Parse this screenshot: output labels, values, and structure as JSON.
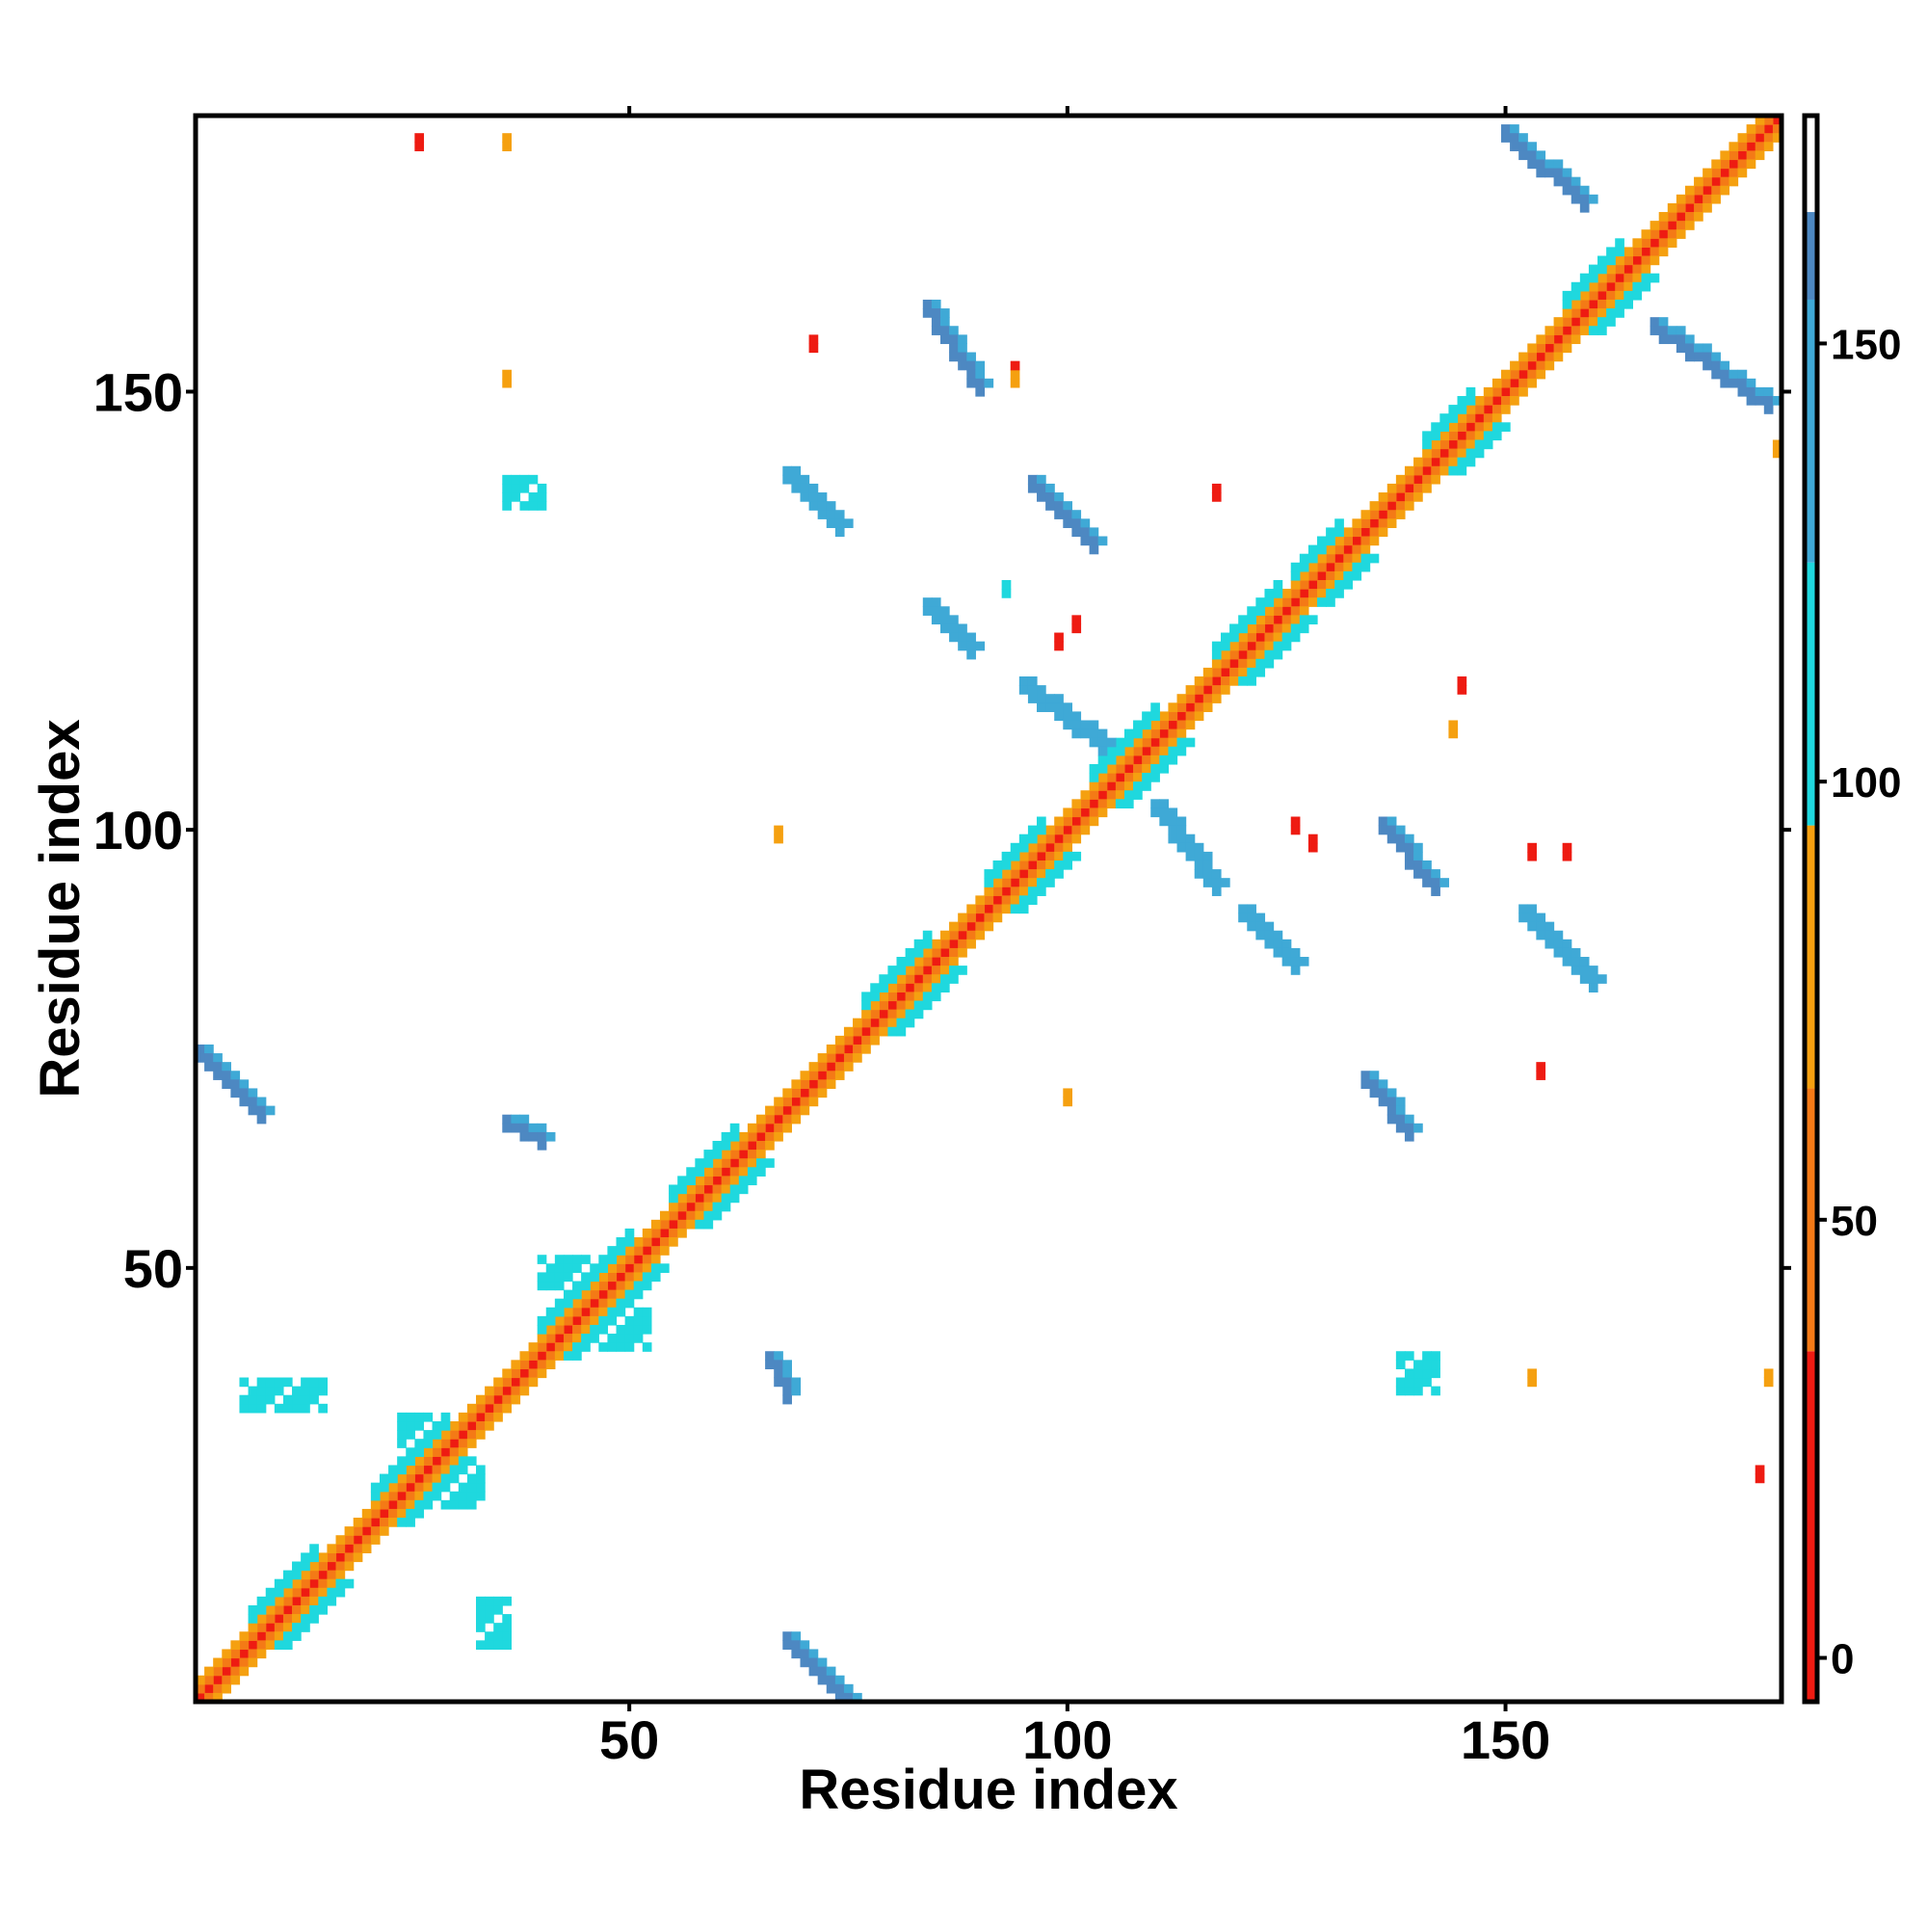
{
  "chart_data": {
    "type": "heatmap",
    "title": "",
    "xlabel": "Residue index",
    "ylabel": "Residue index",
    "x_range": [
      1,
      181
    ],
    "y_range": [
      1,
      181
    ],
    "x_ticks": [
      50,
      100,
      150
    ],
    "y_ticks": [
      50,
      100,
      150
    ],
    "grid": false,
    "colorbar": {
      "range": [
        -5,
        176
      ],
      "ticks": [
        0,
        50,
        100,
        150
      ],
      "bins": [
        {
          "from": -5,
          "to": 35,
          "color": "#ee1b12"
        },
        {
          "from": 35,
          "to": 65,
          "color": "#f47a16"
        },
        {
          "from": 65,
          "to": 95,
          "color": "#f5a010"
        },
        {
          "from": 95,
          "to": 125,
          "color": "#1fd8de"
        },
        {
          "from": 125,
          "to": 155,
          "color": "#3fa9d6"
        },
        {
          "from": 155,
          "to": 165,
          "color": "#4d88c2"
        },
        {
          "from": 165,
          "to": 176,
          "color": "#ffffff"
        }
      ]
    },
    "colors": {
      "red": "#ee1b12",
      "orange_red": "#f47a16",
      "orange": "#f5a010",
      "cyan": "#1fd8de",
      "light_blue": "#3fa9d6",
      "steel_blue": "#4d88c2",
      "diagonal_gap": "#ffffff"
    },
    "diagonal_bands": [
      {
        "offset": 0,
        "color": "red_orange_stripes"
      },
      {
        "offset": 1,
        "color": "orange_red"
      },
      {
        "offset": 2,
        "color": "orange"
      }
    ],
    "helix_regions": [
      [
        7,
        14
      ],
      [
        21,
        28
      ],
      [
        40,
        50
      ],
      [
        55,
        62
      ],
      [
        77,
        84
      ],
      [
        91,
        97
      ],
      [
        103,
        110
      ],
      [
        117,
        124
      ],
      [
        126,
        131
      ],
      [
        141,
        146
      ],
      [
        157,
        163
      ]
    ],
    "off_diagonal_blocks": [
      {
        "x": [
          84,
          90
        ],
        "y": [
          151,
          160
        ],
        "orient": "down",
        "color": "steel_blue"
      },
      {
        "x": [
          150,
          159
        ],
        "y": [
          172,
          180
        ],
        "orient": "down",
        "color": "steel_blue"
      },
      {
        "x": [
          167,
          180
        ],
        "y": [
          149,
          158
        ],
        "orient": "down",
        "color": "steel_blue"
      },
      {
        "x": [
          68,
          74
        ],
        "y": [
          135,
          141
        ],
        "orient": "down",
        "color": "light_blue"
      },
      {
        "x": [
          96,
          103
        ],
        "y": [
          133,
          140
        ],
        "orient": "down",
        "color": "steel_blue"
      },
      {
        "x": [
          84,
          89
        ],
        "y": [
          121,
          126
        ],
        "orient": "down",
        "color": "light_blue"
      },
      {
        "x": [
          95,
          104
        ],
        "y": [
          110,
          117
        ],
        "orient": "down",
        "color": "light_blue"
      },
      {
        "x": [
          110,
          117
        ],
        "y": [
          94,
          103
        ],
        "orient": "down",
        "color": "light_blue"
      },
      {
        "x": [
          136,
          142
        ],
        "y": [
          94,
          101
        ],
        "orient": "down",
        "color": "steel_blue"
      },
      {
        "x": [
          152,
          160
        ],
        "y": [
          83,
          91
        ],
        "orient": "down",
        "color": "light_blue"
      },
      {
        "x": [
          120,
          126
        ],
        "y": [
          85,
          91
        ],
        "orient": "down",
        "color": "light_blue"
      },
      {
        "x": [
          134,
          139
        ],
        "y": [
          66,
          72
        ],
        "orient": "down",
        "color": "steel_blue"
      },
      {
        "x": [
          1,
          8
        ],
        "y": [
          68,
          75
        ],
        "orient": "down",
        "color": "steel_blue"
      },
      {
        "x": [
          68,
          75
        ],
        "y": [
          1,
          8
        ],
        "orient": "down",
        "color": "steel_blue"
      },
      {
        "x": [
          36,
          40
        ],
        "y": [
          65,
          67
        ],
        "orient": "down",
        "color": "steel_blue"
      },
      {
        "x": [
          66,
          68
        ],
        "y": [
          36,
          40
        ],
        "orient": "down",
        "color": "steel_blue"
      },
      {
        "x": [
          36,
          40
        ],
        "y": [
          137,
          140
        ],
        "orient": "cluster",
        "color": "cyan"
      },
      {
        "x": [
          138,
          142
        ],
        "y": [
          36,
          40
        ],
        "orient": "cluster",
        "color": "cyan"
      },
      {
        "x": [
          6,
          15
        ],
        "y": [
          34,
          37
        ],
        "orient": "cluster",
        "color": "cyan"
      },
      {
        "x": [
          33,
          36
        ],
        "y": [
          7,
          12
        ],
        "orient": "cluster",
        "color": "cyan"
      },
      {
        "x": [
          40,
          46
        ],
        "y": [
          48,
          51
        ],
        "orient": "cluster",
        "color": "cyan"
      },
      {
        "x": [
          46,
          52
        ],
        "y": [
          41,
          45
        ],
        "orient": "cluster",
        "color": "cyan"
      },
      {
        "x": [
          24,
          29
        ],
        "y": [
          28,
          33
        ],
        "orient": "cluster",
        "color": "cyan"
      },
      {
        "x": [
          29,
          33
        ],
        "y": [
          23,
          27
        ],
        "orient": "cluster",
        "color": "cyan"
      }
    ],
    "scattered_points": [
      {
        "x": 26,
        "y": 178,
        "color": "red"
      },
      {
        "x": 36,
        "y": 178,
        "color": "orange"
      },
      {
        "x": 36,
        "y": 151,
        "color": "orange"
      },
      {
        "x": 71,
        "y": 155,
        "color": "red"
      },
      {
        "x": 67,
        "y": 99,
        "color": "orange"
      },
      {
        "x": 101,
        "y": 123,
        "color": "red"
      },
      {
        "x": 99,
        "y": 121,
        "color": "red"
      },
      {
        "x": 93,
        "y": 127,
        "color": "cyan"
      },
      {
        "x": 89,
        "y": 151,
        "color": "orange"
      },
      {
        "x": 94,
        "y": 151,
        "color": "orange"
      },
      {
        "x": 94,
        "y": 152,
        "color": "red"
      },
      {
        "x": 117,
        "y": 138,
        "color": "red"
      },
      {
        "x": 128,
        "y": 98,
        "color": "red"
      },
      {
        "x": 126,
        "y": 100,
        "color": "red"
      },
      {
        "x": 144,
        "y": 111,
        "color": "orange"
      },
      {
        "x": 145,
        "y": 116,
        "color": "red"
      },
      {
        "x": 153,
        "y": 97,
        "color": "red"
      },
      {
        "x": 157,
        "y": 97,
        "color": "red"
      },
      {
        "x": 100,
        "y": 69,
        "color": "orange"
      },
      {
        "x": 154,
        "y": 72,
        "color": "red"
      },
      {
        "x": 153,
        "y": 37,
        "color": "orange"
      },
      {
        "x": 180,
        "y": 37,
        "color": "orange"
      },
      {
        "x": 179,
        "y": 26,
        "color": "red"
      },
      {
        "x": 181,
        "y": 143,
        "color": "orange"
      }
    ]
  }
}
